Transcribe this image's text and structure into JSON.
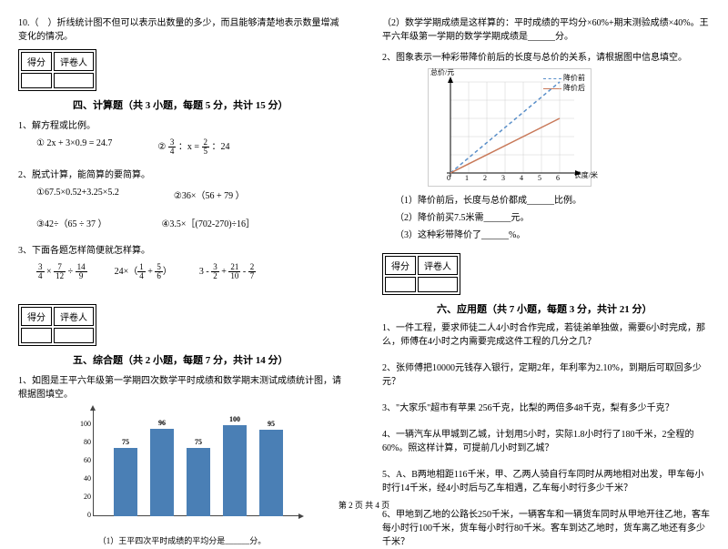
{
  "left": {
    "q10": "10.（　）折线统计图不但可以表示出数量的多少，而且能够清楚地表示数量增减变化的情况。",
    "score_label1": "得分",
    "score_label2": "评卷人",
    "section4": "四、计算题（共 3 小题，每题 5 分，共计 15 分）",
    "s4_q1": "1、解方程或比例。",
    "s4_q1_eq1_pre": "① 2x + 3×0.9 = 24.7",
    "s4_q1_eq2_pre": "②",
    "s4_q1_eq2_a": {
      "n": "3",
      "d": "4"
    },
    "s4_q1_eq2_mid": "：x =",
    "s4_q1_eq2_b": {
      "n": "2",
      "d": "5"
    },
    "s4_q1_eq2_end": "：24",
    "s4_q2": "2、脱式计算，能简算的要简算。",
    "s4_q2_a": "①67.5×0.52+3.25×5.2",
    "s4_q2_b": "②36×（56 + 79 ）",
    "s4_q2_c": "③42÷（65 ÷ 37 ）",
    "s4_q2_d": "④3.5×［(702-270)÷16］",
    "s4_q3": "3、下面各题怎样简便就怎样算。",
    "s4_q3_1a": {
      "n": "3",
      "d": "4"
    },
    "s4_q3_1b": {
      "n": "7",
      "d": "12"
    },
    "s4_q3_1c": {
      "n": "14",
      "d": "9"
    },
    "s4_q3_2a": {
      "n": "1",
      "d": "4"
    },
    "s4_q3_2b": {
      "n": "5",
      "d": "6"
    },
    "s4_q3_3a": {
      "n": "3",
      "d": "2"
    },
    "s4_q3_3b": {
      "n": "21",
      "d": "10"
    },
    "s4_q3_3c": {
      "n": "2",
      "d": "7"
    },
    "section5": "五、综合题（共 2 小题，每题 7 分，共计 14 分）",
    "s5_q1": "1、如图是王平六年级第一学期四次数学平时成绩和数学期末测试成绩统计图，请根据图填空。",
    "bar_chart": {
      "y_ticks": [
        0,
        20,
        40,
        60,
        80,
        100
      ],
      "bars": [
        {
          "v": 75,
          "x": 55
        },
        {
          "v": 96,
          "x": 95
        },
        {
          "v": 75,
          "x": 135
        },
        {
          "v": 100,
          "x": 175
        },
        {
          "v": 95,
          "x": 215
        }
      ],
      "color": "#4a7fb5"
    },
    "s5_q1_sub": "（1）王平四次平时成绩的平均分是______分。"
  },
  "right": {
    "s5_q2a": "（2）数学学期成绩是这样算的：平时成绩的平均分×60%+期末测验成绩×40%。王平六年级第一学期的数学学期成绩是______分。",
    "s5_q2": "2、图象表示一种彩带降价前后的长度与总价的关系，请根据图中信息填空。",
    "line_chart": {
      "ylabel": "总价/元",
      "xlabel": "长度/米",
      "x_ticks": [
        "0",
        "1",
        "2",
        "3",
        "4",
        "5",
        "6"
      ],
      "legend1": "降价前",
      "legend2": "降价后",
      "color1": "#5a8fc9",
      "color2": "#c97a5a",
      "grid_color": "#d0d0d0"
    },
    "s5_sub1": "（1）降价前后，长度与总价都成______比例。",
    "s5_sub2": "（2）降价前买7.5米需______元。",
    "s5_sub3": "（3）这种彩带降价了______%。",
    "section6": "六、应用题（共 7 小题，每题 3 分，共计 21 分）",
    "s6_q1": "1、一件工程，要求师徒二人4小时合作完成，若徒弟单独做，需要6小时完成，那么，师傅在4小时之内需要完成这件工程的几分之几？",
    "s6_q2": "2、张师傅把10000元钱存入银行，定期2年，年利率为2.10%，到期后可取回多少元？",
    "s6_q3": "3、\"大家乐\"超市有苹果 256千克，比梨的两倍多48千克，梨有多少千克？",
    "s6_q4": "4、一辆汽车从甲城到乙城，计划用5小时，实际1.8小时行了180千米，2全程的60%。照这样计算，可提前几小时到乙城？",
    "s6_q5": "5、A、B两地相距116千米，甲、乙两人骑自行车同时从两地相对出发，甲车每小时行14千米，经4小时后与乙车相遇，乙车每小时行多少千米？",
    "s6_q6": "6、甲地到乙地的公路长250千米，一辆客车和一辆货车同时从甲地开往乙地，客车每小时行100千米，货车每小时行80千米。客车到达乙地时，货车离乙地还有多少千米？"
  },
  "footer": "第 2 页 共 4 页"
}
